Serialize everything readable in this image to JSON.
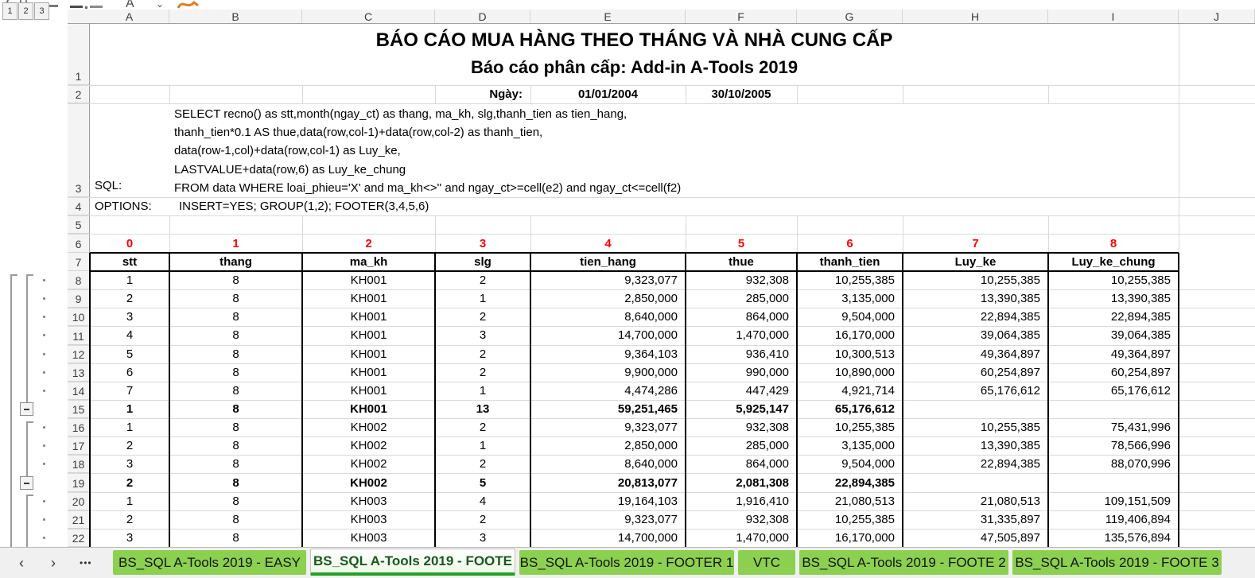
{
  "report": {
    "title": "BÁO CÁO MUA HÀNG THEO THÁNG VÀ NHÀ CUNG CẤP",
    "subtitle": "Báo cáo phân cấp: Add-in A-Tools 2019",
    "date_label": "Ngày:",
    "date_from": "01/01/2004",
    "date_to": "30/10/2005",
    "sql_label": "SQL:",
    "sql_lines": [
      "SELECT recno() as stt,month(ngay_ct) as thang, ma_kh, slg,thanh_tien as tien_hang,",
      "thanh_tien*0.1 AS thue,data(row,col-1)+data(row,col-2) as thanh_tien,",
      "data(row-1,col)+data(row,col-1) as Luy_ke,",
      "LASTVALUE+data(row,6) as Luy_ke_chung",
      "FROM data WHERE loai_phieu='X' and ma_kh<>''  and ngay_ct>=cell(e2) and ngay_ct<=cell(f2)"
    ],
    "options_label": "OPTIONS:",
    "options_value": "INSERT=YES; GROUP(1,2); FOOTER(3,4,5,6)"
  },
  "sheet": {
    "column_letters": [
      "A",
      "B",
      "C",
      "D",
      "E",
      "F",
      "G",
      "H",
      "I",
      "J"
    ],
    "row_numbers": [
      "1",
      "2",
      "3",
      "4",
      "5",
      "6",
      "7",
      "8",
      "9",
      "10",
      "11",
      "12",
      "13",
      "14",
      "15",
      "16",
      "17",
      "18",
      "19",
      "20",
      "21",
      "22"
    ],
    "outline_levels": [
      "1",
      "2",
      "3"
    ],
    "field_indices": [
      "0",
      "1",
      "2",
      "3",
      "4",
      "5",
      "6",
      "7",
      "8"
    ],
    "table": {
      "headers": [
        "stt",
        "thang",
        "ma_kh",
        "slg",
        "tien_hang",
        "thue",
        "thanh_tien",
        "Luy_ke",
        "Luy_ke_chung"
      ],
      "rows": [
        {
          "row": "8",
          "bold": false,
          "cells": [
            "1",
            "8",
            "KH001",
            "2",
            "9,323,077",
            "932,308",
            "10,255,385",
            "10,255,385",
            "10,255,385"
          ]
        },
        {
          "row": "9",
          "bold": false,
          "cells": [
            "2",
            "8",
            "KH001",
            "1",
            "2,850,000",
            "285,000",
            "3,135,000",
            "13,390,385",
            "13,390,385"
          ]
        },
        {
          "row": "10",
          "bold": false,
          "cells": [
            "3",
            "8",
            "KH001",
            "2",
            "8,640,000",
            "864,000",
            "9,504,000",
            "22,894,385",
            "22,894,385"
          ]
        },
        {
          "row": "11",
          "bold": false,
          "cells": [
            "4",
            "8",
            "KH001",
            "3",
            "14,700,000",
            "1,470,000",
            "16,170,000",
            "39,064,385",
            "39,064,385"
          ]
        },
        {
          "row": "12",
          "bold": false,
          "cells": [
            "5",
            "8",
            "KH001",
            "2",
            "9,364,103",
            "936,410",
            "10,300,513",
            "49,364,897",
            "49,364,897"
          ]
        },
        {
          "row": "13",
          "bold": false,
          "cells": [
            "6",
            "8",
            "KH001",
            "2",
            "9,900,000",
            "990,000",
            "10,890,000",
            "60,254,897",
            "60,254,897"
          ]
        },
        {
          "row": "14",
          "bold": false,
          "cells": [
            "7",
            "8",
            "KH001",
            "1",
            "4,474,286",
            "447,429",
            "4,921,714",
            "65,176,612",
            "65,176,612"
          ]
        },
        {
          "row": "15",
          "bold": true,
          "cells": [
            "1",
            "8",
            "KH001",
            "13",
            "59,251,465",
            "5,925,147",
            "65,176,612",
            "",
            ""
          ]
        },
        {
          "row": "16",
          "bold": false,
          "cells": [
            "1",
            "8",
            "KH002",
            "2",
            "9,323,077",
            "932,308",
            "10,255,385",
            "10,255,385",
            "75,431,996"
          ]
        },
        {
          "row": "17",
          "bold": false,
          "cells": [
            "2",
            "8",
            "KH002",
            "1",
            "2,850,000",
            "285,000",
            "3,135,000",
            "13,390,385",
            "78,566,996"
          ]
        },
        {
          "row": "18",
          "bold": false,
          "cells": [
            "3",
            "8",
            "KH002",
            "2",
            "8,640,000",
            "864,000",
            "9,504,000",
            "22,894,385",
            "88,070,996"
          ]
        },
        {
          "row": "19",
          "bold": true,
          "cells": [
            "2",
            "8",
            "KH002",
            "5",
            "20,813,077",
            "2,081,308",
            "22,894,385",
            "",
            ""
          ]
        },
        {
          "row": "20",
          "bold": false,
          "cells": [
            "1",
            "8",
            "KH003",
            "4",
            "19,164,103",
            "1,916,410",
            "21,080,513",
            "21,080,513",
            "109,151,509"
          ]
        },
        {
          "row": "21",
          "bold": false,
          "cells": [
            "2",
            "8",
            "KH003",
            "2",
            "9,323,077",
            "932,308",
            "10,255,385",
            "31,335,897",
            "119,406,894"
          ]
        },
        {
          "row": "22",
          "bold": false,
          "cells": [
            "3",
            "8",
            "KH003",
            "3",
            "14,700,000",
            "1,470,000",
            "16,170,000",
            "47,505,897",
            "135,576,894"
          ]
        }
      ]
    }
  },
  "mini_toolbar": {
    "underline_label": "U",
    "font_color_label": "A",
    "dropdown_glyph": "⌄"
  },
  "tabs": {
    "prev": "‹",
    "next": "›",
    "more": "•••",
    "items": [
      {
        "label": "BS_SQL A-Tools 2019 - EASY",
        "active": false
      },
      {
        "label": "BS_SQL A-Tools 2019 - FOOTE",
        "active": true
      },
      {
        "label": "BS_SQL A-Tools 2019 - FOOTER 1",
        "active": false
      },
      {
        "label": "VTC",
        "active": false
      },
      {
        "label": "BS_SQL A-Tools 2019 - FOOTE 2",
        "active": false
      },
      {
        "label": "BS_SQL A-Tools 2019 - FOOTE 3",
        "active": false
      }
    ]
  },
  "colors": {
    "tab_green": "#8cd050",
    "active_tab_underline": "#21a121",
    "field_index_red": "#ff0000"
  }
}
